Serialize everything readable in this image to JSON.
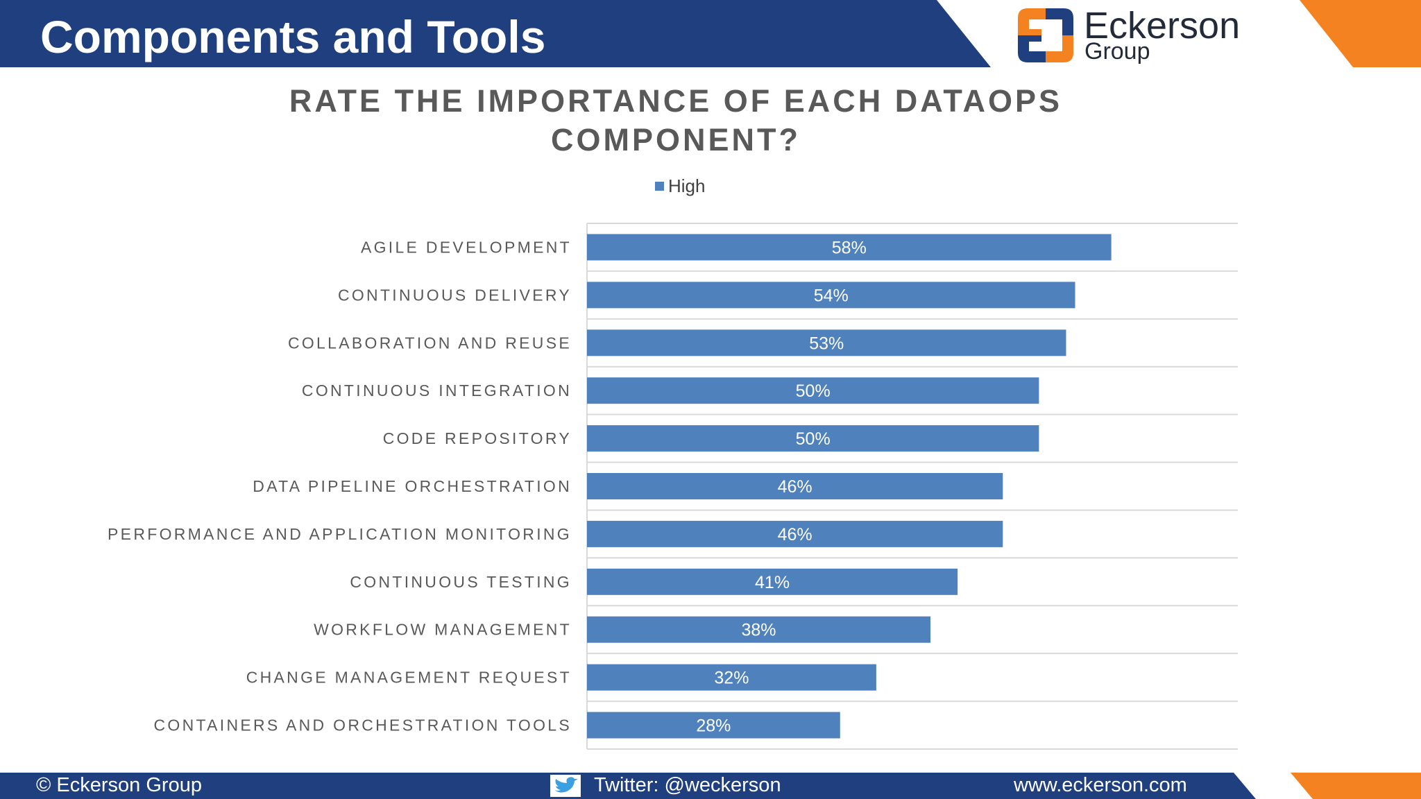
{
  "header": {
    "title": "Components and Tools"
  },
  "logo": {
    "name": "Eckerson",
    "sub": "Group"
  },
  "colors": {
    "header_blue": "#1f3f7f",
    "accent_orange": "#f58220",
    "bar_blue": "#4f81bd",
    "gridline": "#d9d9d9",
    "label_gray": "#595959"
  },
  "footer": {
    "copyright": "© Eckerson Group",
    "twitter": "Twitter: @weckerson",
    "twitter_icon": "twitter-bird-icon",
    "website": "www.eckerson.com"
  },
  "chart_data": {
    "type": "bar",
    "orientation": "horizontal",
    "title": "RATE THE IMPORTANCE OF EACH DATAOPS COMPONENT?",
    "legend": "top-center",
    "grid": true,
    "xlim": [
      0,
      72
    ],
    "categories": [
      "AGILE DEVELOPMENT",
      "CONTINUOUS DELIVERY",
      "COLLABORATION AND REUSE",
      "CONTINUOUS INTEGRATION",
      "CODE REPOSITORY",
      "DATA PIPELINE ORCHESTRATION",
      "PERFORMANCE AND APPLICATION MONITORING",
      "CONTINUOUS TESTING",
      "WORKFLOW MANAGEMENT",
      "CHANGE MANAGEMENT REQUEST",
      "CONTAINERS AND ORCHESTRATION TOOLS"
    ],
    "series": [
      {
        "name": "High",
        "values": [
          58,
          54,
          53,
          50,
          50,
          46,
          46,
          41,
          38,
          32,
          28
        ]
      }
    ],
    "data_labels": [
      "58%",
      "54%",
      "53%",
      "50%",
      "50%",
      "46%",
      "46%",
      "41%",
      "38%",
      "32%",
      "28%"
    ]
  }
}
